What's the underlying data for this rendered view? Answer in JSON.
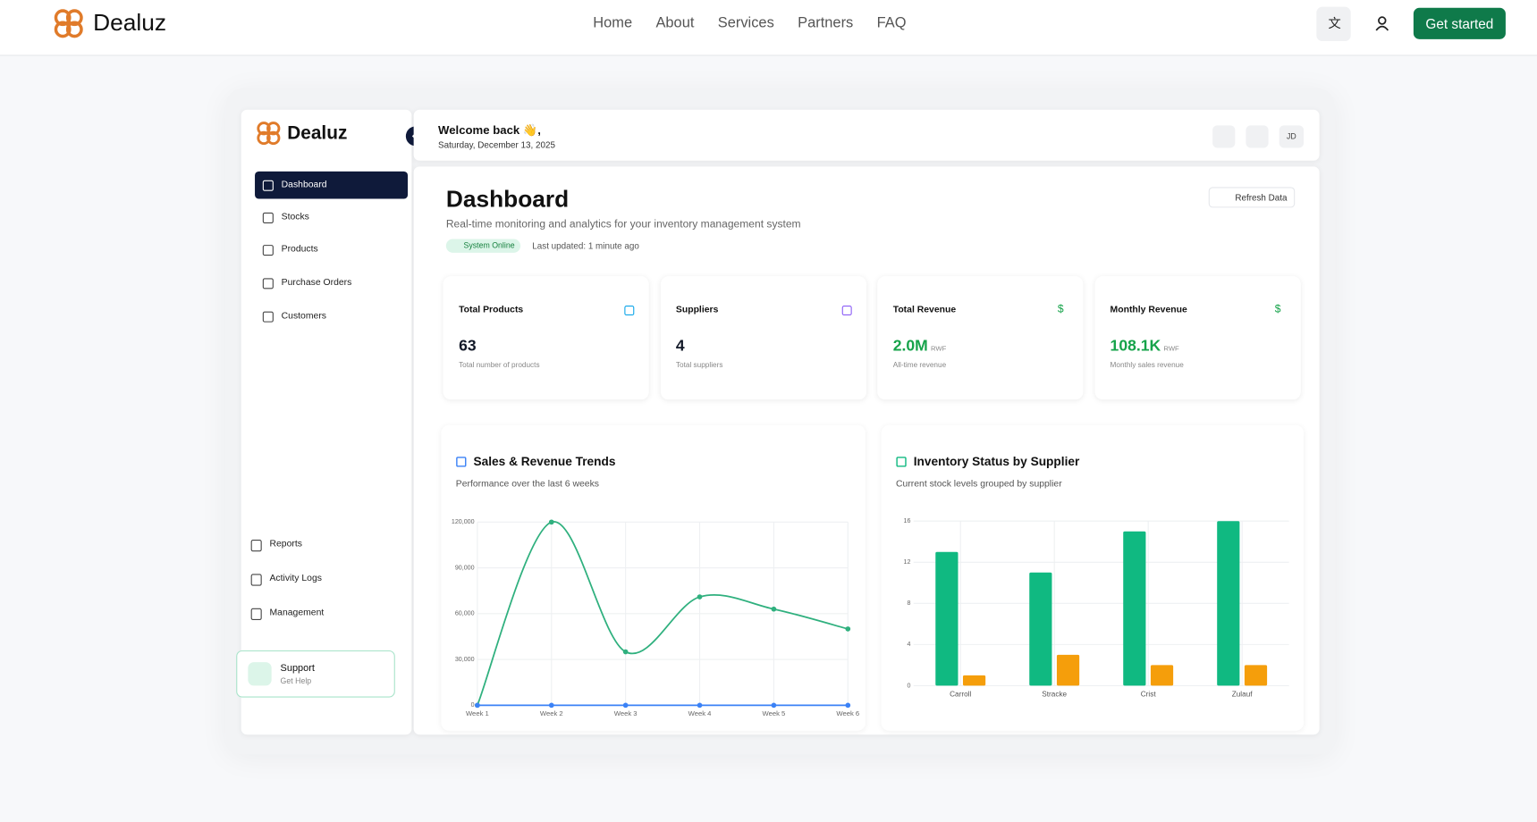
{
  "header": {
    "brand": "Dealuz",
    "nav": [
      "Home",
      "About",
      "Services",
      "Partners",
      "FAQ"
    ],
    "cta": "Get started"
  },
  "app": {
    "brand": "Dealuz",
    "greeting": "Welcome back 👋,",
    "date": "Saturday, December 13, 2025",
    "avatar": "JD",
    "menu": [
      "Dashboard",
      "Stocks",
      "Products",
      "Purchase Orders",
      "Customers"
    ],
    "menu_bottom": [
      "Reports",
      "Activity Logs",
      "Management"
    ],
    "support": {
      "title": "Support",
      "subtitle": "Get Help"
    }
  },
  "dashboard": {
    "title": "Dashboard",
    "subtitle": "Real-time monitoring and analytics for your inventory management system",
    "status": "System Online",
    "updated": "Last updated: 1 minute ago",
    "refresh": "Refresh Data",
    "cards": [
      {
        "title": "Total Products",
        "value": "63",
        "caption": "Total number of products",
        "color": "#111827"
      },
      {
        "title": "Suppliers",
        "value": "4",
        "caption": "Total suppliers",
        "color": "#111827"
      },
      {
        "title": "Total Revenue",
        "value": "2.0M",
        "unit": "RWF",
        "caption": "All-time revenue",
        "symbol": "$",
        "color": "#16a34a"
      },
      {
        "title": "Monthly Revenue",
        "value": "108.1K",
        "unit": "RWF",
        "caption": "Monthly sales revenue",
        "symbol": "$",
        "color": "#16a34a"
      }
    ]
  },
  "charts": [
    {
      "type": "line",
      "title": "Sales & Revenue Trends",
      "subtitle": "Performance over the last 6 weeks",
      "categories": [
        "Week 1",
        "Week 2",
        "Week 3",
        "Week 4",
        "Week 5",
        "Week 6"
      ],
      "ylim": [
        0,
        120000
      ],
      "yticks": [
        0,
        {
          "value": 30000,
          "label": "30,000"
        },
        {
          "value": 60000,
          "label": "60,000"
        },
        {
          "value": 90000,
          "label": "90,000"
        },
        {
          "value": 120000,
          "label": "120,000"
        }
      ],
      "grid": true,
      "series": [
        {
          "color": "#2fb07e",
          "values": [
            0,
            120000,
            35000,
            71000,
            63000,
            50000
          ]
        },
        {
          "color": "#3b82f6",
          "values": [
            0,
            0,
            0,
            0,
            0,
            0
          ]
        }
      ]
    },
    {
      "type": "bar",
      "title": "Inventory Status by Supplier",
      "subtitle": "Current stock levels grouped by supplier",
      "categories": [
        "Carroll",
        "Stracke",
        "Crist",
        "Zulauf"
      ],
      "ylim": [
        0,
        16
      ],
      "yticks": [
        0,
        4,
        8,
        12,
        16
      ],
      "grid": true,
      "series": [
        {
          "color": "#10b981",
          "values": [
            13,
            11,
            15,
            16
          ]
        },
        {
          "color": "#f59e0b",
          "values": [
            1,
            3,
            2,
            2
          ]
        }
      ]
    }
  ]
}
